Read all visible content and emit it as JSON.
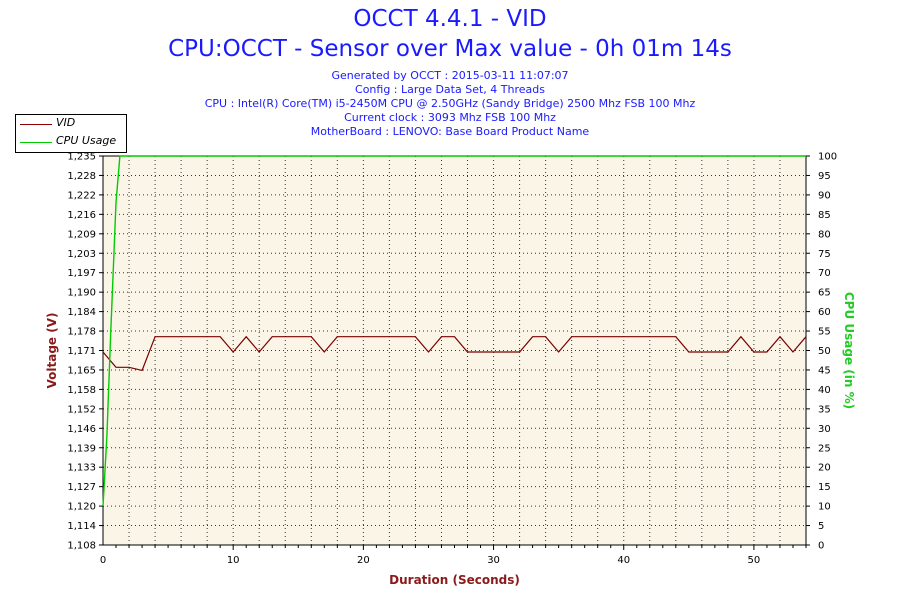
{
  "header": {
    "title": "OCCT 4.4.1 - VID",
    "subtitle": "CPU:OCCT - Sensor over Max value - 0h 01m 14s",
    "info": [
      "Generated by OCCT : 2015-03-11 11:07:07",
      "Config : Large Data Set, 4 Threads",
      "CPU : Intel(R) Core(TM) i5-2450M CPU @ 2.50GHz (Sandy Bridge) 2500 Mhz FSB 100 Mhz",
      "Current clock : 3093 Mhz FSB 100 Mhz",
      "MotherBoard : LENOVO: Base Board Product Name"
    ]
  },
  "legend": {
    "items": [
      {
        "label": "VID",
        "color": "#8b0000"
      },
      {
        "label": "CPU Usage",
        "color": "#00cc00"
      }
    ]
  },
  "colors": {
    "plot_background": "#faf5e6",
    "vid": "#7a0000",
    "cpu": "#00cc00",
    "left_axis_title": "#8b1a1a",
    "right_axis_title": "#22cc22",
    "x_axis_title": "#8b1a1a",
    "title": "#1a1aff"
  },
  "chart_data": {
    "type": "line",
    "title": "OCCT 4.4.1 - VID",
    "xlabel": "Duration (Seconds)",
    "ylabel": "Voltage (V)",
    "y2label": "CPU Usage (in %)",
    "xlim": [
      0,
      54
    ],
    "ylim": [
      1.108,
      1.235
    ],
    "y2lim": [
      0,
      100
    ],
    "x_ticks": [
      0,
      10,
      20,
      30,
      40,
      50
    ],
    "y_ticks": [
      "1,108",
      "1,114",
      "1,120",
      "1,127",
      "1,133",
      "1,139",
      "1,146",
      "1,152",
      "1,158",
      "1,165",
      "1,171",
      "1,178",
      "1,184",
      "1,190",
      "1,197",
      "1,203",
      "1,209",
      "1,216",
      "1,222",
      "1,228",
      "1,235"
    ],
    "y2_ticks": [
      0,
      5,
      10,
      15,
      20,
      25,
      30,
      35,
      40,
      45,
      50,
      55,
      60,
      65,
      70,
      75,
      80,
      85,
      90,
      95,
      100
    ],
    "grid": true,
    "legend_position": "top-left",
    "series": [
      {
        "name": "VID",
        "axis": "left",
        "x": [
          0,
          1,
          2,
          3,
          4,
          5,
          6,
          7,
          8,
          9,
          10,
          11,
          12,
          13,
          14,
          15,
          16,
          17,
          18,
          19,
          20,
          21,
          22,
          23,
          24,
          25,
          26,
          27,
          28,
          29,
          30,
          31,
          32,
          33,
          34,
          35,
          36,
          37,
          38,
          39,
          40,
          41,
          42,
          43,
          44,
          45,
          46,
          47,
          48,
          49,
          50,
          51,
          52,
          53,
          54
        ],
        "values": [
          1.171,
          1.166,
          1.166,
          1.165,
          1.176,
          1.176,
          1.176,
          1.176,
          1.176,
          1.176,
          1.171,
          1.176,
          1.171,
          1.176,
          1.176,
          1.176,
          1.176,
          1.171,
          1.176,
          1.176,
          1.176,
          1.176,
          1.176,
          1.176,
          1.176,
          1.171,
          1.176,
          1.176,
          1.171,
          1.171,
          1.171,
          1.171,
          1.171,
          1.176,
          1.176,
          1.171,
          1.176,
          1.176,
          1.176,
          1.176,
          1.176,
          1.176,
          1.176,
          1.176,
          1.176,
          1.171,
          1.171,
          1.171,
          1.171,
          1.176,
          1.171,
          1.171,
          1.176,
          1.171,
          1.176
        ]
      },
      {
        "name": "CPU Usage",
        "axis": "right",
        "x": [
          0,
          0.3,
          0.6,
          1,
          1.3,
          54
        ],
        "values": [
          10,
          28,
          55,
          88,
          100,
          100
        ]
      }
    ]
  }
}
